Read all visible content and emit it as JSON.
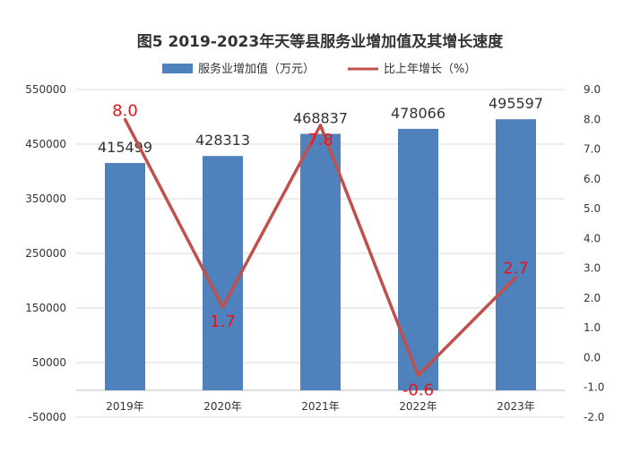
{
  "chart_data": {
    "type": "bar",
    "title": "图5 2019-2023年天等县服务业增加值及其增长速度",
    "categories": [
      "2019年",
      "2020年",
      "2021年",
      "2022年",
      "2023年"
    ],
    "series": [
      {
        "name": "服务业增加值（万元）",
        "type": "bar",
        "axis": "left",
        "color": "#4f81bd",
        "values": [
          415499,
          428313,
          468837,
          478066,
          495597
        ],
        "labels": [
          "415499",
          "428313",
          "468837",
          "478066",
          "495597"
        ]
      },
      {
        "name": "比上年增长（%）",
        "type": "line",
        "axis": "right",
        "color": "#c0504d",
        "label_color": "#e5141b",
        "values": [
          8.0,
          1.7,
          7.8,
          -0.6,
          2.7
        ],
        "labels": [
          "8.0",
          "1.7",
          "7.8",
          "-0.6",
          "2.7"
        ]
      }
    ],
    "y_left": {
      "ylim": [
        -50000,
        550000
      ],
      "ticks": [
        "550000",
        "450000",
        "350000",
        "250000",
        "150000",
        "50000",
        "-50000"
      ]
    },
    "y_right": {
      "ylim": [
        -2.0,
        9.0
      ],
      "ticks": [
        "9.0",
        "8.0",
        "7.0",
        "6.0",
        "5.0",
        "4.0",
        "3.0",
        "2.0",
        "1.0",
        "0.0",
        "-1.0",
        "-2.0"
      ]
    },
    "grid": true,
    "legend_position": "top"
  }
}
